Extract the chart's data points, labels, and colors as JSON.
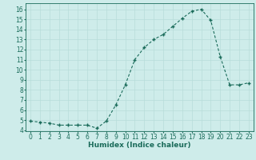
{
  "x": [
    0,
    1,
    2,
    3,
    4,
    5,
    6,
    7,
    8,
    9,
    10,
    11,
    12,
    13,
    14,
    15,
    16,
    17,
    18,
    19,
    20,
    21,
    22,
    23
  ],
  "y": [
    4.9,
    4.8,
    4.7,
    4.5,
    4.5,
    4.5,
    4.5,
    4.2,
    4.9,
    6.5,
    8.5,
    11.0,
    12.2,
    13.0,
    13.5,
    14.3,
    15.1,
    15.8,
    16.0,
    14.9,
    11.3,
    8.5,
    8.5,
    8.7
  ],
  "line_color": "#1a6b5a",
  "marker": "+",
  "markersize": 3.5,
  "linewidth": 0.8,
  "xlabel": "Humidex (Indice chaleur)",
  "ylabel": "",
  "xlim": [
    -0.5,
    23.5
  ],
  "ylim": [
    3.9,
    16.6
  ],
  "yticks": [
    4,
    5,
    6,
    7,
    8,
    9,
    10,
    11,
    12,
    13,
    14,
    15,
    16
  ],
  "xticks": [
    0,
    1,
    2,
    3,
    4,
    5,
    6,
    7,
    8,
    9,
    10,
    11,
    12,
    13,
    14,
    15,
    16,
    17,
    18,
    19,
    20,
    21,
    22,
    23
  ],
  "bg_color": "#ceecea",
  "grid_color": "#b8ddd9",
  "tick_color": "#1a6b5a",
  "label_color": "#1a6b5a",
  "xlabel_fontsize": 6.5,
  "tick_fontsize": 5.5,
  "linestyle": "-",
  "dashes": [
    3,
    2
  ]
}
